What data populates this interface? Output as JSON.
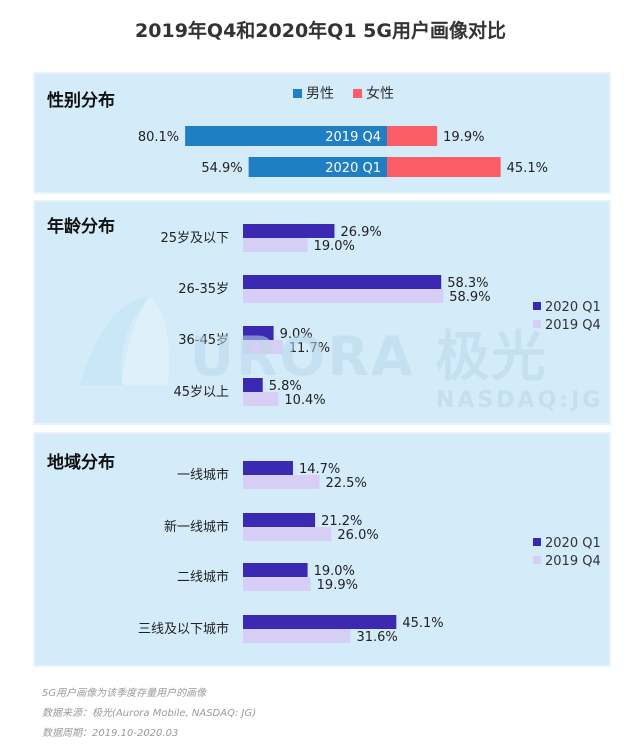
{
  "title": "2019年Q4和2020年Q1 5G用户画像对比",
  "colors": {
    "male": "#1f7fc2",
    "female": "#fb5d67",
    "q1_2020": "#3b29b2",
    "q4_2019": "#d6cef5",
    "panel_bg": "#d4ebfa"
  },
  "chart_data": [
    {
      "type": "bar",
      "title": "性别分布",
      "categories": [
        "2019 Q4",
        "2020 Q1"
      ],
      "series": [
        {
          "name": "男性",
          "values": [
            80.1,
            54.9
          ]
        },
        {
          "name": "女性",
          "values": [
            19.9,
            45.1
          ]
        }
      ],
      "value_labels": {
        "男性": [
          "80.1%",
          "54.9%"
        ],
        "女性": [
          "19.9%",
          "45.1%"
        ]
      },
      "legend": "top-center"
    },
    {
      "type": "bar",
      "title": "年龄分布",
      "categories": [
        "25岁及以下",
        "26-35岁",
        "36-45岁",
        "45岁以上"
      ],
      "series": [
        {
          "name": "2020 Q1",
          "values": [
            26.9,
            58.3,
            9.0,
            5.8
          ]
        },
        {
          "name": "2019 Q4",
          "values": [
            19.0,
            58.9,
            11.7,
            10.4
          ]
        }
      ],
      "value_labels": {
        "2020 Q1": [
          "26.9%",
          "58.3%",
          "9.0%",
          "5.8%"
        ],
        "2019 Q4": [
          "19.0%",
          "58.9%",
          "11.7%",
          "10.4%"
        ]
      },
      "legend": "right"
    },
    {
      "type": "bar",
      "title": "地域分布",
      "categories": [
        "一线城市",
        "新一线城市",
        "二线城市",
        "三线及以下城市"
      ],
      "series": [
        {
          "name": "2020 Q1",
          "values": [
            14.7,
            21.2,
            19.0,
            45.1
          ]
        },
        {
          "name": "2019 Q4",
          "values": [
            22.5,
            26.0,
            19.9,
            31.6
          ]
        }
      ],
      "value_labels": {
        "2020 Q1": [
          "14.7%",
          "21.2%",
          "19.0%",
          "45.1%"
        ],
        "2019 Q4": [
          "22.5%",
          "26.0%",
          "19.9%",
          "31.6%"
        ]
      },
      "legend": "right"
    }
  ],
  "watermark": {
    "brand": "URORA 极光",
    "sub": "NASDAQ:JG"
  },
  "footer": {
    "note": "5G用户画像为该季度存量用户的画像",
    "source": "数据来源：极光(Aurora Mobile, NASDAQ: JG)",
    "period": "数据周期：2019.10-2020.03"
  }
}
